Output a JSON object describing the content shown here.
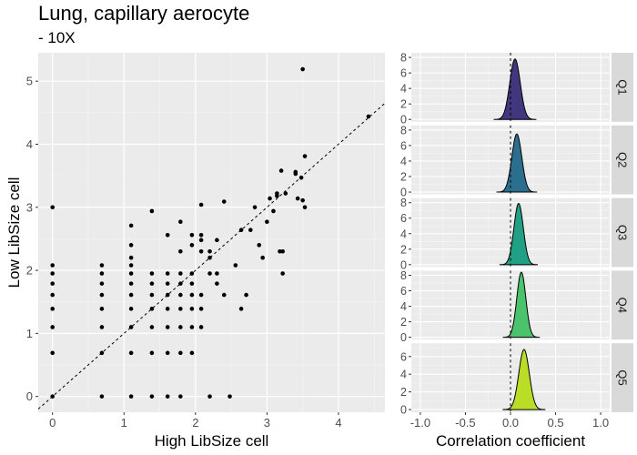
{
  "title": "Lung, capillary aerocyte",
  "subtitle": "- 10X",
  "chart_data": [
    {
      "type": "scatter",
      "xlabel": "High LibSize cell",
      "ylabel": "Low LibSize cell",
      "xlim": [
        -0.2,
        4.65
      ],
      "ylim": [
        -0.25,
        5.45
      ],
      "xticks": [
        0,
        1,
        2,
        3,
        4
      ],
      "yticks": [
        0,
        1,
        2,
        3,
        4,
        5
      ],
      "reference_line": "y = x (dashed)",
      "grid": true,
      "points": [
        [
          0,
          0
        ],
        [
          0,
          0.69
        ],
        [
          0,
          1.1
        ],
        [
          0,
          1.39
        ],
        [
          0,
          1.61
        ],
        [
          0,
          1.79
        ],
        [
          0,
          1.95
        ],
        [
          0,
          2.08
        ],
        [
          0,
          3.0
        ],
        [
          0.69,
          0
        ],
        [
          0.69,
          0.69
        ],
        [
          0.69,
          1.1
        ],
        [
          0.69,
          1.39
        ],
        [
          0.69,
          1.61
        ],
        [
          0.69,
          1.79
        ],
        [
          0.69,
          1.95
        ],
        [
          0.69,
          2.08
        ],
        [
          1.1,
          0
        ],
        [
          1.1,
          0.69
        ],
        [
          1.1,
          1.1
        ],
        [
          1.1,
          1.39
        ],
        [
          1.1,
          1.61
        ],
        [
          1.1,
          1.79
        ],
        [
          1.1,
          1.95
        ],
        [
          1.1,
          2.08
        ],
        [
          1.1,
          2.2
        ],
        [
          1.1,
          2.4
        ],
        [
          1.1,
          2.71
        ],
        [
          1.39,
          0
        ],
        [
          1.39,
          0.69
        ],
        [
          1.39,
          1.1
        ],
        [
          1.39,
          1.39
        ],
        [
          1.39,
          1.61
        ],
        [
          1.39,
          1.79
        ],
        [
          1.39,
          1.95
        ],
        [
          1.39,
          2.94
        ],
        [
          1.61,
          0
        ],
        [
          1.61,
          0.69
        ],
        [
          1.61,
          1.1
        ],
        [
          1.61,
          1.39
        ],
        [
          1.61,
          1.61
        ],
        [
          1.61,
          1.79
        ],
        [
          1.61,
          1.95
        ],
        [
          1.61,
          2.56
        ],
        [
          1.79,
          0
        ],
        [
          1.79,
          0.69
        ],
        [
          1.79,
          1.1
        ],
        [
          1.79,
          1.39
        ],
        [
          1.79,
          1.61
        ],
        [
          1.79,
          1.79
        ],
        [
          1.79,
          1.95
        ],
        [
          1.79,
          2.3
        ],
        [
          1.79,
          2.77
        ],
        [
          1.95,
          0.69
        ],
        [
          1.95,
          1.1
        ],
        [
          1.95,
          1.39
        ],
        [
          1.95,
          1.61
        ],
        [
          1.95,
          1.79
        ],
        [
          1.95,
          1.95
        ],
        [
          1.95,
          2.4
        ],
        [
          1.95,
          2.56
        ],
        [
          2.08,
          1.1
        ],
        [
          2.08,
          1.39
        ],
        [
          2.08,
          1.61
        ],
        [
          2.08,
          2.3
        ],
        [
          2.08,
          2.48
        ],
        [
          2.08,
          2.56
        ],
        [
          2.08,
          3.04
        ],
        [
          2.2,
          0
        ],
        [
          2.2,
          1.95
        ],
        [
          2.2,
          2.2
        ],
        [
          2.2,
          2.3
        ],
        [
          2.3,
          1.79
        ],
        [
          2.3,
          1.95
        ],
        [
          2.3,
          2.48
        ],
        [
          2.4,
          1.61
        ],
        [
          2.4,
          3.09
        ],
        [
          2.48,
          0
        ],
        [
          2.56,
          2.08
        ],
        [
          2.64,
          1.39
        ],
        [
          2.64,
          2.64
        ],
        [
          2.71,
          1.61
        ],
        [
          2.77,
          2.64
        ],
        [
          2.83,
          3.0
        ],
        [
          2.89,
          2.4
        ],
        [
          2.94,
          2.2
        ],
        [
          3.0,
          2.77
        ],
        [
          3.04,
          3.14
        ],
        [
          3.09,
          2.94
        ],
        [
          3.14,
          3.22
        ],
        [
          3.14,
          3.18
        ],
        [
          3.18,
          2.3
        ],
        [
          3.2,
          3.58
        ],
        [
          3.22,
          1.95
        ],
        [
          3.22,
          2.3
        ],
        [
          3.26,
          3.22
        ],
        [
          3.4,
          3.53
        ],
        [
          3.4,
          3.56
        ],
        [
          3.43,
          3.14
        ],
        [
          3.48,
          3.47
        ],
        [
          3.5,
          3.11
        ],
        [
          3.5,
          5.19
        ],
        [
          3.53,
          3.0
        ],
        [
          3.53,
          3.81
        ],
        [
          4.42,
          4.44
        ]
      ]
    },
    {
      "type": "area",
      "xlabel": "Correlation coefficient",
      "xlim": [
        -1.1,
        1.1
      ],
      "xticks": [
        -1.0,
        -0.5,
        0.0,
        0.5,
        1.0
      ],
      "xtick_labels": [
        "-1.0",
        "-0.5",
        "0.0",
        "0.5",
        "1.0"
      ],
      "reference_line": "x = 0 (dashed)",
      "panels": [
        {
          "label": "Q1",
          "color": "#41377e",
          "center": 0.05,
          "sd": 0.058,
          "peak": 7.8,
          "ylim": [
            -0.3,
            8.6
          ],
          "yticks": [
            0,
            2,
            4,
            6,
            8
          ]
        },
        {
          "label": "Q2",
          "color": "#2c6e8e",
          "center": 0.07,
          "sd": 0.055,
          "peak": 7.5,
          "ylim": [
            -0.3,
            8.6
          ],
          "yticks": [
            0,
            2,
            4,
            6,
            8
          ]
        },
        {
          "label": "Q3",
          "color": "#21a085",
          "center": 0.09,
          "sd": 0.052,
          "peak": 7.9,
          "ylim": [
            -0.3,
            8.6
          ],
          "yticks": [
            0,
            2,
            4,
            6,
            8
          ]
        },
        {
          "label": "Q4",
          "color": "#4bc26c",
          "center": 0.12,
          "sd": 0.05,
          "peak": 8.4,
          "ylim": [
            -0.3,
            8.6
          ],
          "yticks": [
            0,
            2,
            4,
            6,
            8
          ]
        },
        {
          "label": "Q5",
          "color": "#bade28",
          "center": 0.15,
          "sd": 0.058,
          "peak": 6.8,
          "ylim": [
            -0.3,
            7.5
          ],
          "yticks": [
            0,
            2,
            4,
            6
          ]
        }
      ]
    }
  ]
}
